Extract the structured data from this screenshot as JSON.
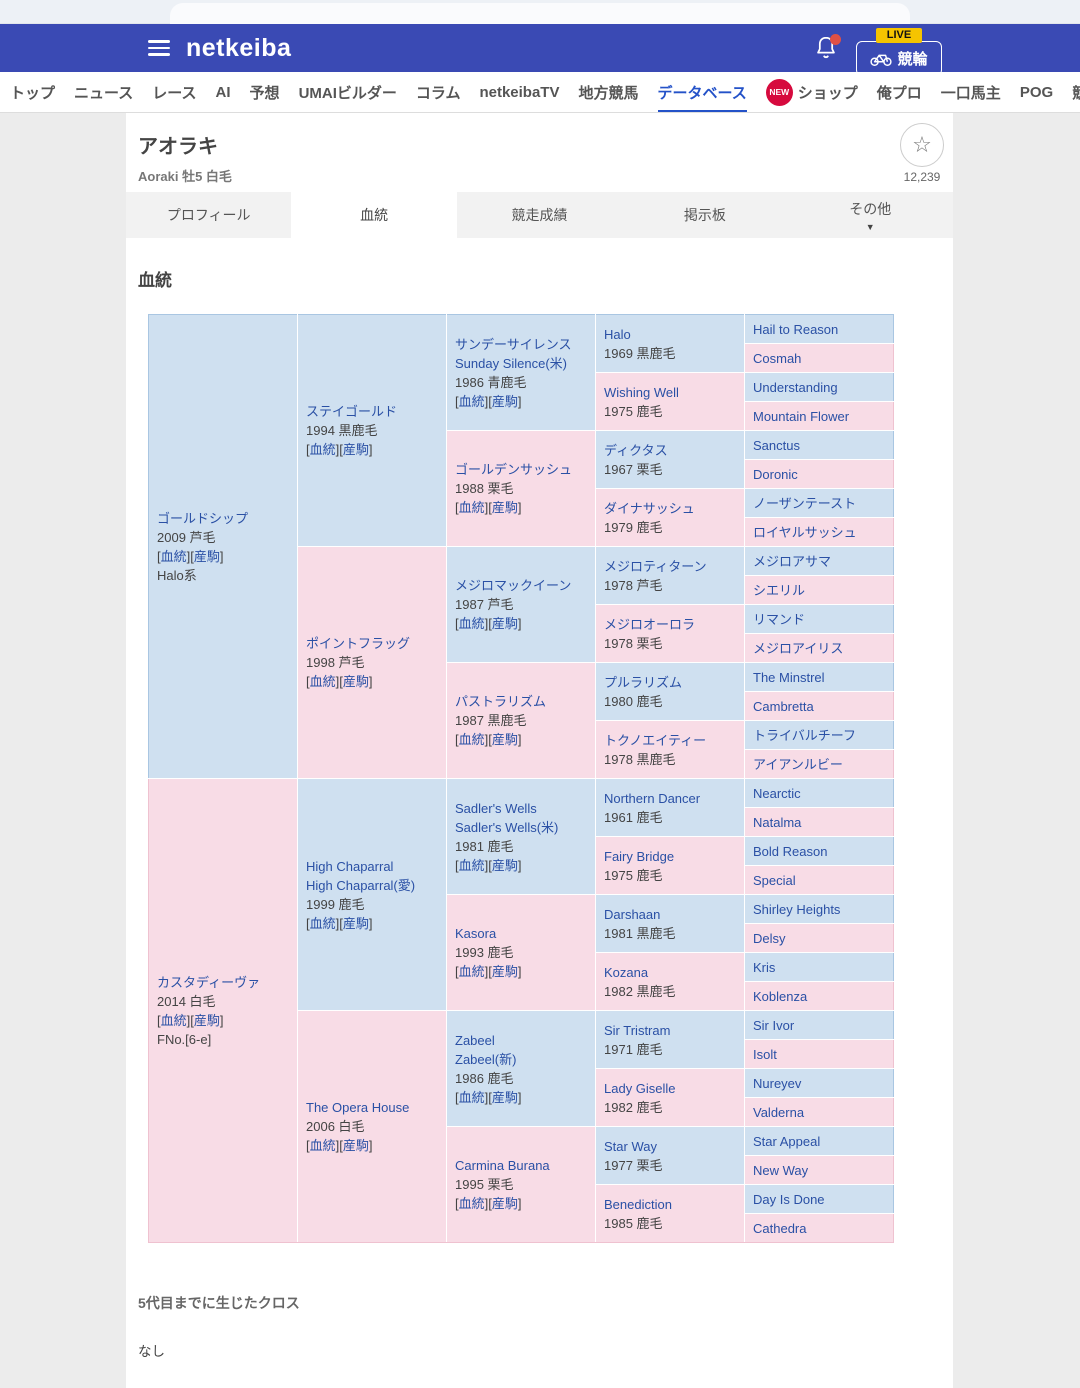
{
  "header": {
    "logo": "netkeiba",
    "live_badge": "LIVE",
    "keirin_label": "競輪"
  },
  "nav": {
    "items": [
      {
        "label": "トップ"
      },
      {
        "label": "ニュース"
      },
      {
        "label": "レース"
      },
      {
        "label": "AI"
      },
      {
        "label": "予想"
      },
      {
        "label": "UMAIビルダー"
      },
      {
        "label": "コラム"
      },
      {
        "label": "netkeibaTV"
      },
      {
        "label": "地方競馬"
      },
      {
        "label": "データベース",
        "active": true
      },
      {
        "label": "ショップ",
        "badge": "NEW"
      },
      {
        "label": "俺プロ"
      },
      {
        "label": "一口馬主"
      },
      {
        "label": "POG"
      },
      {
        "label": "競馬広場"
      }
    ]
  },
  "horse": {
    "name": "アオラキ",
    "subtitle": "Aoraki  牡5  白毛",
    "fav_count": "12,239",
    "star_icon": "☆"
  },
  "tabs": {
    "items": [
      "プロフィール",
      "血統",
      "競走成績",
      "掲示板",
      "その他"
    ],
    "active_index": 1,
    "more_arrow": "▼"
  },
  "section": {
    "title": "血統"
  },
  "pedigree": {
    "labels": {
      "blood": "血統",
      "offspring": "産駒"
    },
    "generations": [
      {
        "span": 16,
        "cells": [
          {
            "sex": "m",
            "names": [
              "ゴールドシップ"
            ],
            "info": "2009 芦毛",
            "links": true,
            "note": "Halo系"
          },
          {
            "sex": "f",
            "names": [
              "カスタディーヴァ"
            ],
            "info": "2014 白毛",
            "links": true,
            "note": "FNo.[6-e]"
          }
        ]
      },
      {
        "span": 8,
        "cells": [
          {
            "sex": "m",
            "names": [
              "ステイゴールド"
            ],
            "info": "1994 黒鹿毛",
            "links": true
          },
          {
            "sex": "f",
            "names": [
              "ポイントフラッグ"
            ],
            "info": "1998 芦毛",
            "links": true
          },
          {
            "sex": "m",
            "names": [
              "High Chaparral",
              "High Chaparral(愛)"
            ],
            "info": "1999 鹿毛",
            "links": true
          },
          {
            "sex": "f",
            "names": [
              "The Opera House"
            ],
            "info": "2006 白毛",
            "links": true
          }
        ]
      },
      {
        "span": 4,
        "cells": [
          {
            "sex": "m",
            "names": [
              "サンデーサイレンス",
              "Sunday Silence(米)"
            ],
            "info": "1986 青鹿毛",
            "links": true
          },
          {
            "sex": "f",
            "names": [
              "ゴールデンサッシュ"
            ],
            "info": "1988 栗毛",
            "links": true
          },
          {
            "sex": "m",
            "names": [
              "メジロマックイーン"
            ],
            "info": "1987 芦毛",
            "links": true
          },
          {
            "sex": "f",
            "names": [
              "パストラリズム"
            ],
            "info": "1987 黒鹿毛",
            "links": true
          },
          {
            "sex": "m",
            "names": [
              "Sadler's Wells",
              "Sadler's Wells(米)"
            ],
            "info": "1981 鹿毛",
            "links": true
          },
          {
            "sex": "f",
            "names": [
              "Kasora"
            ],
            "info": "1993 鹿毛",
            "links": true
          },
          {
            "sex": "m",
            "names": [
              "Zabeel",
              "Zabeel(新)"
            ],
            "info": "1986 鹿毛",
            "links": true
          },
          {
            "sex": "f",
            "names": [
              "Carmina Burana"
            ],
            "info": "1995 栗毛",
            "links": true
          }
        ]
      },
      {
        "span": 2,
        "cells": [
          {
            "sex": "m",
            "names": [
              "Halo"
            ],
            "info": "1969 黒鹿毛"
          },
          {
            "sex": "f",
            "names": [
              "Wishing Well"
            ],
            "info": "1975 鹿毛"
          },
          {
            "sex": "m",
            "names": [
              "ディクタス"
            ],
            "info": "1967 栗毛"
          },
          {
            "sex": "f",
            "names": [
              "ダイナサッシュ"
            ],
            "info": "1979 鹿毛"
          },
          {
            "sex": "m",
            "names": [
              "メジロティターン"
            ],
            "info": "1978 芦毛"
          },
          {
            "sex": "f",
            "names": [
              "メジロオーロラ"
            ],
            "info": "1978 栗毛"
          },
          {
            "sex": "m",
            "names": [
              "プルラリズム"
            ],
            "info": "1980 鹿毛"
          },
          {
            "sex": "f",
            "names": [
              "トクノエイティー"
            ],
            "info": "1978 黒鹿毛"
          },
          {
            "sex": "m",
            "names": [
              "Northern Dancer"
            ],
            "info": "1961 鹿毛"
          },
          {
            "sex": "f",
            "names": [
              "Fairy Bridge"
            ],
            "info": "1975 鹿毛"
          },
          {
            "sex": "m",
            "names": [
              "Darshaan"
            ],
            "info": "1981 黒鹿毛"
          },
          {
            "sex": "f",
            "names": [
              "Kozana"
            ],
            "info": "1982 黒鹿毛"
          },
          {
            "sex": "m",
            "names": [
              "Sir Tristram"
            ],
            "info": "1971 鹿毛"
          },
          {
            "sex": "f",
            "names": [
              "Lady Giselle"
            ],
            "info": "1982 鹿毛"
          },
          {
            "sex": "m",
            "names": [
              "Star Way"
            ],
            "info": "1977 栗毛"
          },
          {
            "sex": "f",
            "names": [
              "Benediction"
            ],
            "info": "1985 鹿毛"
          }
        ]
      },
      {
        "span": 1,
        "cells": [
          {
            "sex": "m",
            "names": [
              "Hail to Reason"
            ]
          },
          {
            "sex": "f",
            "names": [
              "Cosmah"
            ]
          },
          {
            "sex": "m",
            "names": [
              "Understanding"
            ]
          },
          {
            "sex": "f",
            "names": [
              "Mountain Flower"
            ]
          },
          {
            "sex": "m",
            "names": [
              "Sanctus"
            ]
          },
          {
            "sex": "f",
            "names": [
              "Doronic"
            ]
          },
          {
            "sex": "m",
            "names": [
              "ノーザンテースト"
            ]
          },
          {
            "sex": "f",
            "names": [
              "ロイヤルサッシュ"
            ]
          },
          {
            "sex": "m",
            "names": [
              "メジロアサマ"
            ]
          },
          {
            "sex": "f",
            "names": [
              "シエリル"
            ]
          },
          {
            "sex": "m",
            "names": [
              "リマンド"
            ]
          },
          {
            "sex": "f",
            "names": [
              "メジロアイリス"
            ]
          },
          {
            "sex": "m",
            "names": [
              "The Minstrel"
            ]
          },
          {
            "sex": "f",
            "names": [
              "Cambretta"
            ]
          },
          {
            "sex": "m",
            "names": [
              "トライバルチーフ"
            ]
          },
          {
            "sex": "f",
            "names": [
              "アイアンルビー"
            ]
          },
          {
            "sex": "m",
            "names": [
              "Nearctic"
            ]
          },
          {
            "sex": "f",
            "names": [
              "Natalma"
            ]
          },
          {
            "sex": "m",
            "names": [
              "Bold Reason"
            ]
          },
          {
            "sex": "f",
            "names": [
              "Special"
            ]
          },
          {
            "sex": "m",
            "names": [
              "Shirley Heights"
            ]
          },
          {
            "sex": "f",
            "names": [
              "Delsy"
            ]
          },
          {
            "sex": "m",
            "names": [
              "Kris"
            ]
          },
          {
            "sex": "f",
            "names": [
              "Koblenza"
            ]
          },
          {
            "sex": "m",
            "names": [
              "Sir Ivor"
            ]
          },
          {
            "sex": "f",
            "names": [
              "Isolt"
            ]
          },
          {
            "sex": "m",
            "names": [
              "Nureyev"
            ]
          },
          {
            "sex": "f",
            "names": [
              "Valderna"
            ]
          },
          {
            "sex": "m",
            "names": [
              "Star Appeal"
            ]
          },
          {
            "sex": "f",
            "names": [
              "New Way"
            ]
          },
          {
            "sex": "m",
            "names": [
              "Day Is Done"
            ]
          },
          {
            "sex": "f",
            "names": [
              "Cathedra"
            ]
          }
        ]
      }
    ]
  },
  "cross": {
    "heading": "5代目までに生じたクロス",
    "value": "なし"
  },
  "colors": {
    "header_blue": "#3a4ab4",
    "active_nav_blue": "#2452c8",
    "link_blue": "#2a50a5",
    "male_cell_bg": "#cfe0f0",
    "female_cell_bg": "#f8dce6",
    "new_badge_red": "#d60a3e",
    "live_badge_yellow": "#f5c400",
    "notification_dot_red": "#e05045"
  }
}
